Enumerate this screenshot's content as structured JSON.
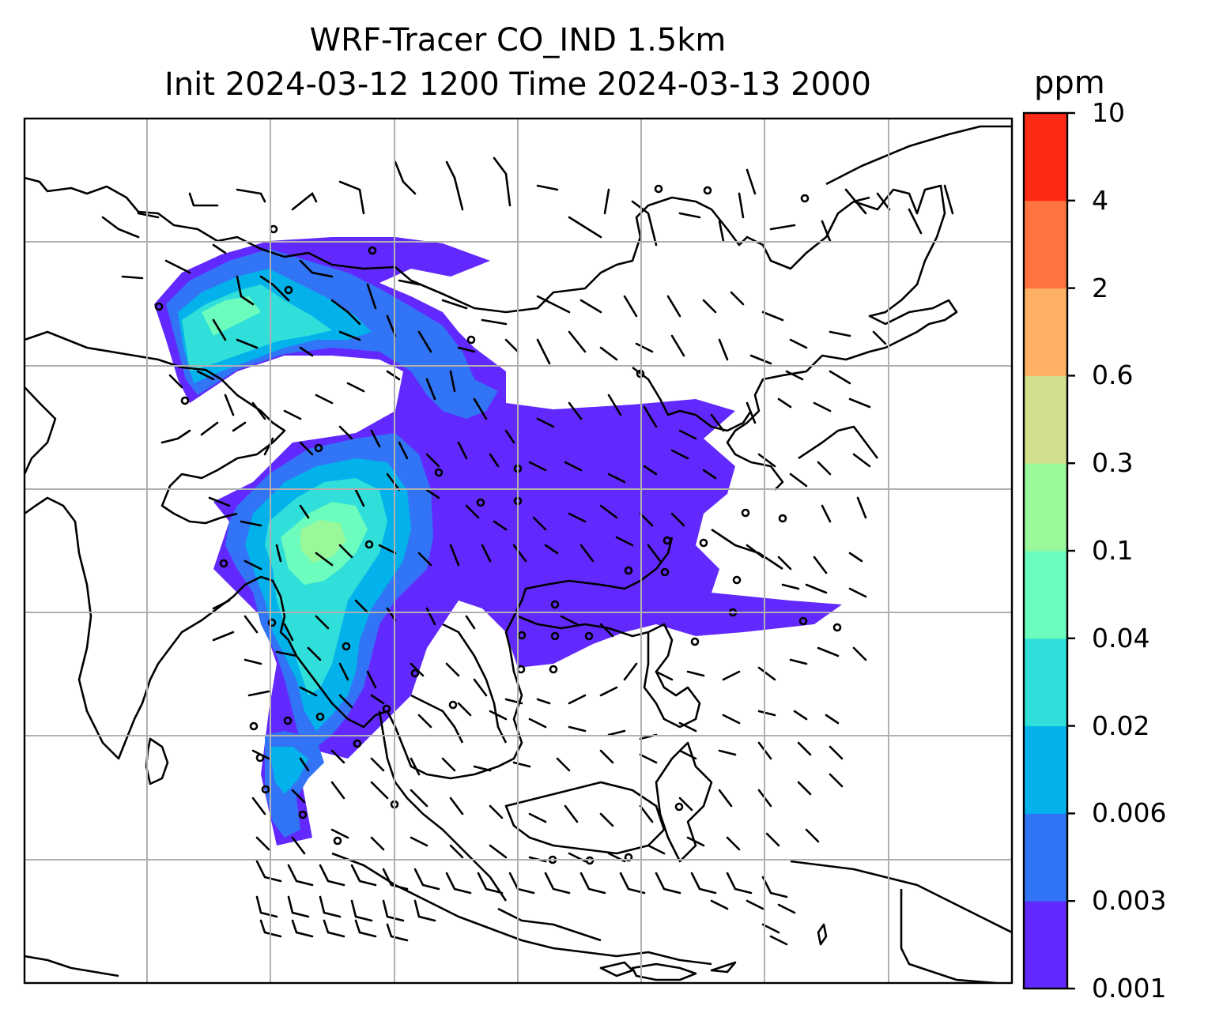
{
  "title": {
    "line1": "WRF-Tracer CO_IND 1.5km",
    "line2": "Init 2024-03-12 1200 Time 2024-03-13 2000"
  },
  "colorbar": {
    "unit": "ppm",
    "levels": [
      "0.001",
      "0.003",
      "0.006",
      "0.02",
      "0.04",
      "0.1",
      "0.3",
      "0.6",
      "2",
      "4",
      "10"
    ],
    "colors": [
      "#6229fe",
      "#3274f6",
      "#03b2ea",
      "#30deda",
      "#6bfcbe",
      "#99f99a",
      "#d0e08c",
      "#ffb062",
      "#ff7340",
      "#ff2a16"
    ]
  },
  "map": {
    "gridlines": true,
    "wind_barbs": true,
    "coastlines": true,
    "background": "#ffffff",
    "line_color": "#000000",
    "grid_color": "#b0b0b0"
  }
}
